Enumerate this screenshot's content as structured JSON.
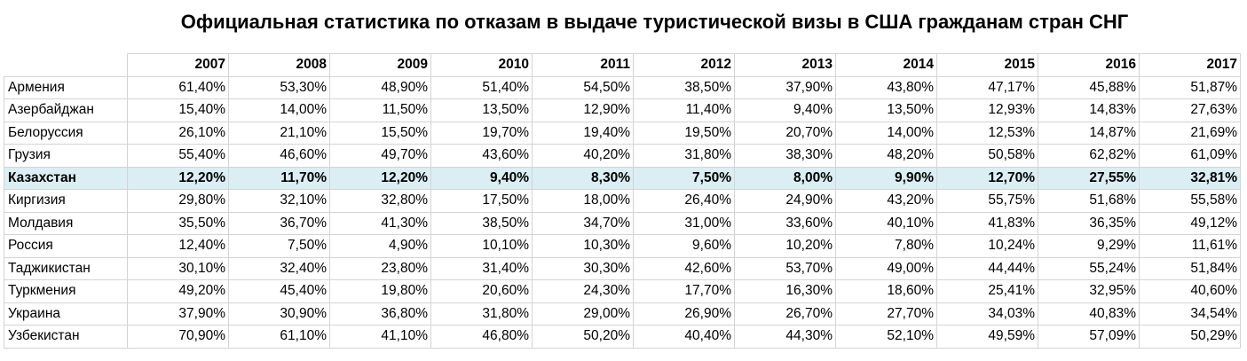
{
  "title": "Официальная статистика по отказам в выдаче туристической визы в США гражданам стран СНГ",
  "years": [
    "2007",
    "2008",
    "2009",
    "2010",
    "2011",
    "2012",
    "2013",
    "2014",
    "2015",
    "2016",
    "2017"
  ],
  "highlight_color": "#daeef3",
  "rows": [
    {
      "country": "Армения",
      "values": [
        "61,40%",
        "53,30%",
        "48,90%",
        "51,40%",
        "54,50%",
        "38,50%",
        "37,90%",
        "43,80%",
        "47,17%",
        "45,88%",
        "51,87%"
      ]
    },
    {
      "country": "Азербайджан",
      "values": [
        "15,40%",
        "14,00%",
        "11,50%",
        "13,50%",
        "12,90%",
        "11,40%",
        "9,40%",
        "13,50%",
        "12,93%",
        "14,83%",
        "27,63%"
      ]
    },
    {
      "country": "Белоруссия",
      "values": [
        "26,10%",
        "21,10%",
        "15,50%",
        "19,70%",
        "19,40%",
        "19,50%",
        "20,70%",
        "14,00%",
        "12,53%",
        "14,87%",
        "21,69%"
      ]
    },
    {
      "country": "Грузия",
      "values": [
        "55,40%",
        "46,60%",
        "49,70%",
        "43,60%",
        "40,20%",
        "31,80%",
        "38,30%",
        "48,20%",
        "50,58%",
        "62,82%",
        "61,09%"
      ]
    },
    {
      "country": "Казахстан",
      "highlighted": true,
      "values": [
        "12,20%",
        "11,70%",
        "12,20%",
        "9,40%",
        "8,30%",
        "7,50%",
        "8,00%",
        "9,90%",
        "12,70%",
        "27,55%",
        "32,81%"
      ]
    },
    {
      "country": "Киргизия",
      "values": [
        "29,80%",
        "32,10%",
        "32,80%",
        "17,50%",
        "18,00%",
        "26,40%",
        "24,90%",
        "43,20%",
        "55,75%",
        "51,68%",
        "55,58%"
      ]
    },
    {
      "country": "Молдавия",
      "values": [
        "35,50%",
        "36,70%",
        "41,30%",
        "38,50%",
        "34,70%",
        "31,00%",
        "33,60%",
        "40,10%",
        "41,83%",
        "36,35%",
        "49,12%"
      ]
    },
    {
      "country": "Россия",
      "values": [
        "12,40%",
        "7,50%",
        "4,90%",
        "10,10%",
        "10,30%",
        "9,60%",
        "10,20%",
        "7,80%",
        "10,24%",
        "9,29%",
        "11,61%"
      ]
    },
    {
      "country": "Таджикистан",
      "values": [
        "30,10%",
        "32,40%",
        "23,80%",
        "31,40%",
        "30,30%",
        "42,60%",
        "53,70%",
        "49,00%",
        "44,44%",
        "55,24%",
        "51,84%"
      ]
    },
    {
      "country": "Туркмения",
      "values": [
        "49,20%",
        "45,40%",
        "19,80%",
        "20,60%",
        "24,30%",
        "17,70%",
        "16,30%",
        "18,60%",
        "25,41%",
        "32,95%",
        "40,60%"
      ]
    },
    {
      "country": "Украина",
      "values": [
        "37,90%",
        "30,90%",
        "36,80%",
        "31,80%",
        "29,00%",
        "26,90%",
        "26,70%",
        "27,70%",
        "34,03%",
        "40,83%",
        "34,54%"
      ]
    },
    {
      "country": "Узбекистан",
      "values": [
        "70,90%",
        "61,10%",
        "41,10%",
        "46,80%",
        "50,20%",
        "40,40%",
        "44,30%",
        "52,10%",
        "49,59%",
        "57,09%",
        "50,29%"
      ]
    }
  ]
}
